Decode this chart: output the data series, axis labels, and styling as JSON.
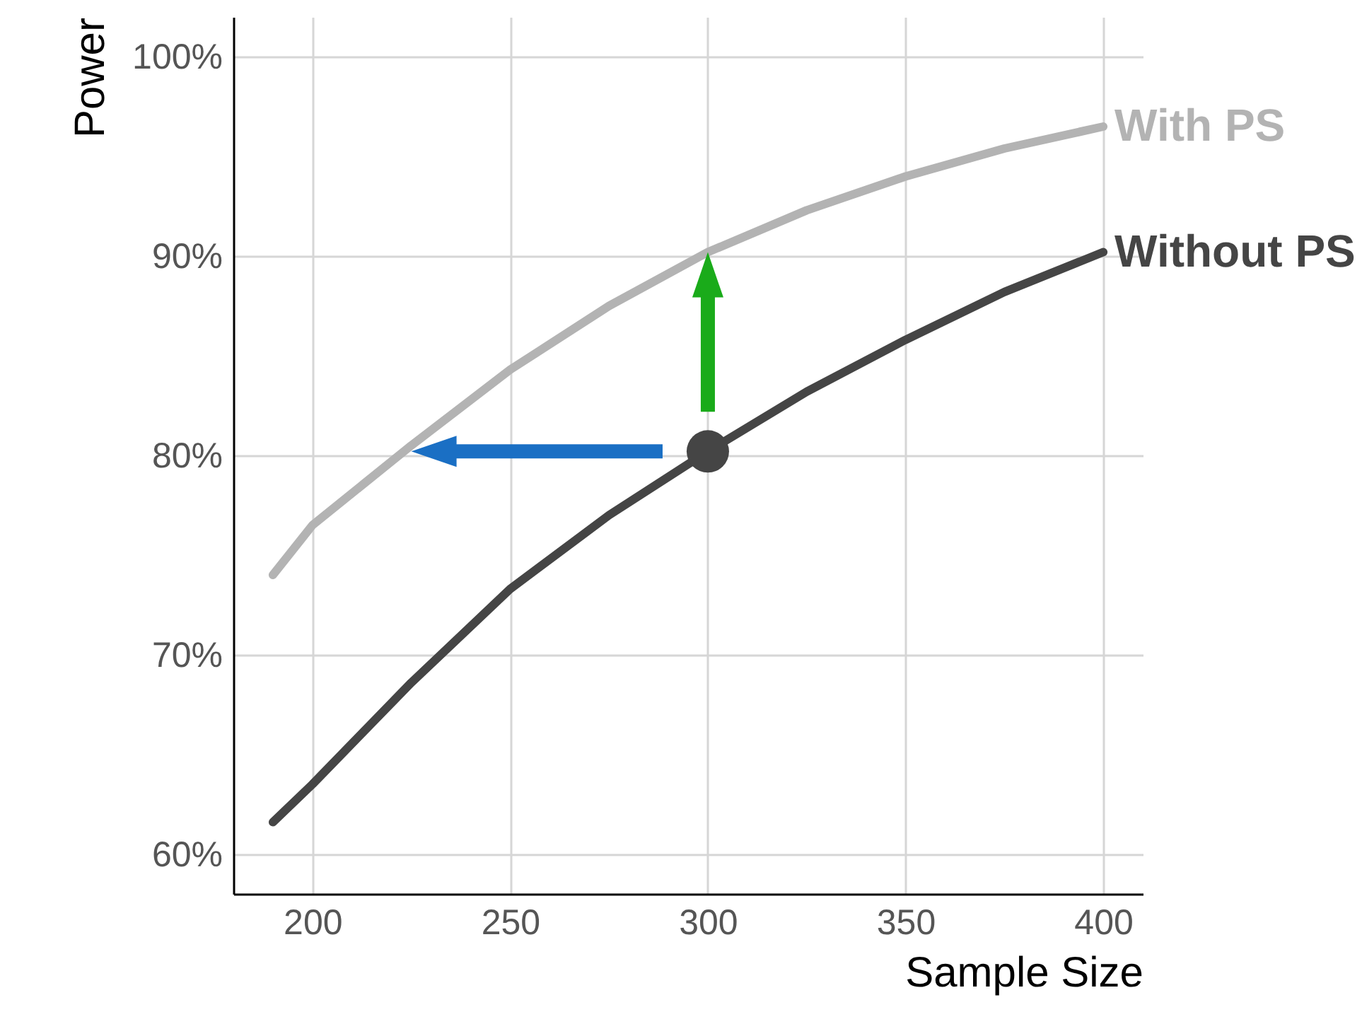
{
  "chart_data": {
    "type": "line",
    "xlabel": "Sample Size",
    "ylabel": "Power",
    "x": [
      190,
      200,
      225,
      250,
      275,
      300,
      325,
      350,
      375,
      400
    ],
    "series": [
      {
        "name": "With PS",
        "color": "#b3b3b3",
        "values": [
          74,
          76.5,
          80.5,
          84.3,
          87.5,
          90.2,
          92.3,
          94,
          95.4,
          96.5
        ]
      },
      {
        "name": "Without PS",
        "color": "#454545",
        "values": [
          61.6,
          63.5,
          68.6,
          73.3,
          77,
          80.2,
          83.2,
          85.8,
          88.2,
          90.2
        ]
      },
      {
        "type": "scatter",
        "color": "#454545",
        "marker": "circle",
        "x": [
          300
        ],
        "values": [
          80.2
        ]
      }
    ],
    "xlim": [
      180,
      410
    ],
    "xticks": [
      200,
      250,
      300,
      350,
      400
    ],
    "ylim": [
      58,
      102
    ],
    "yticks": [
      {
        "value": 60,
        "label": "60%"
      },
      {
        "value": 70,
        "label": "70%"
      },
      {
        "value": 80,
        "label": "80%"
      },
      {
        "value": 90,
        "label": "90%"
      },
      {
        "value": 100,
        "label": "100%"
      }
    ],
    "grid": true
  }
}
